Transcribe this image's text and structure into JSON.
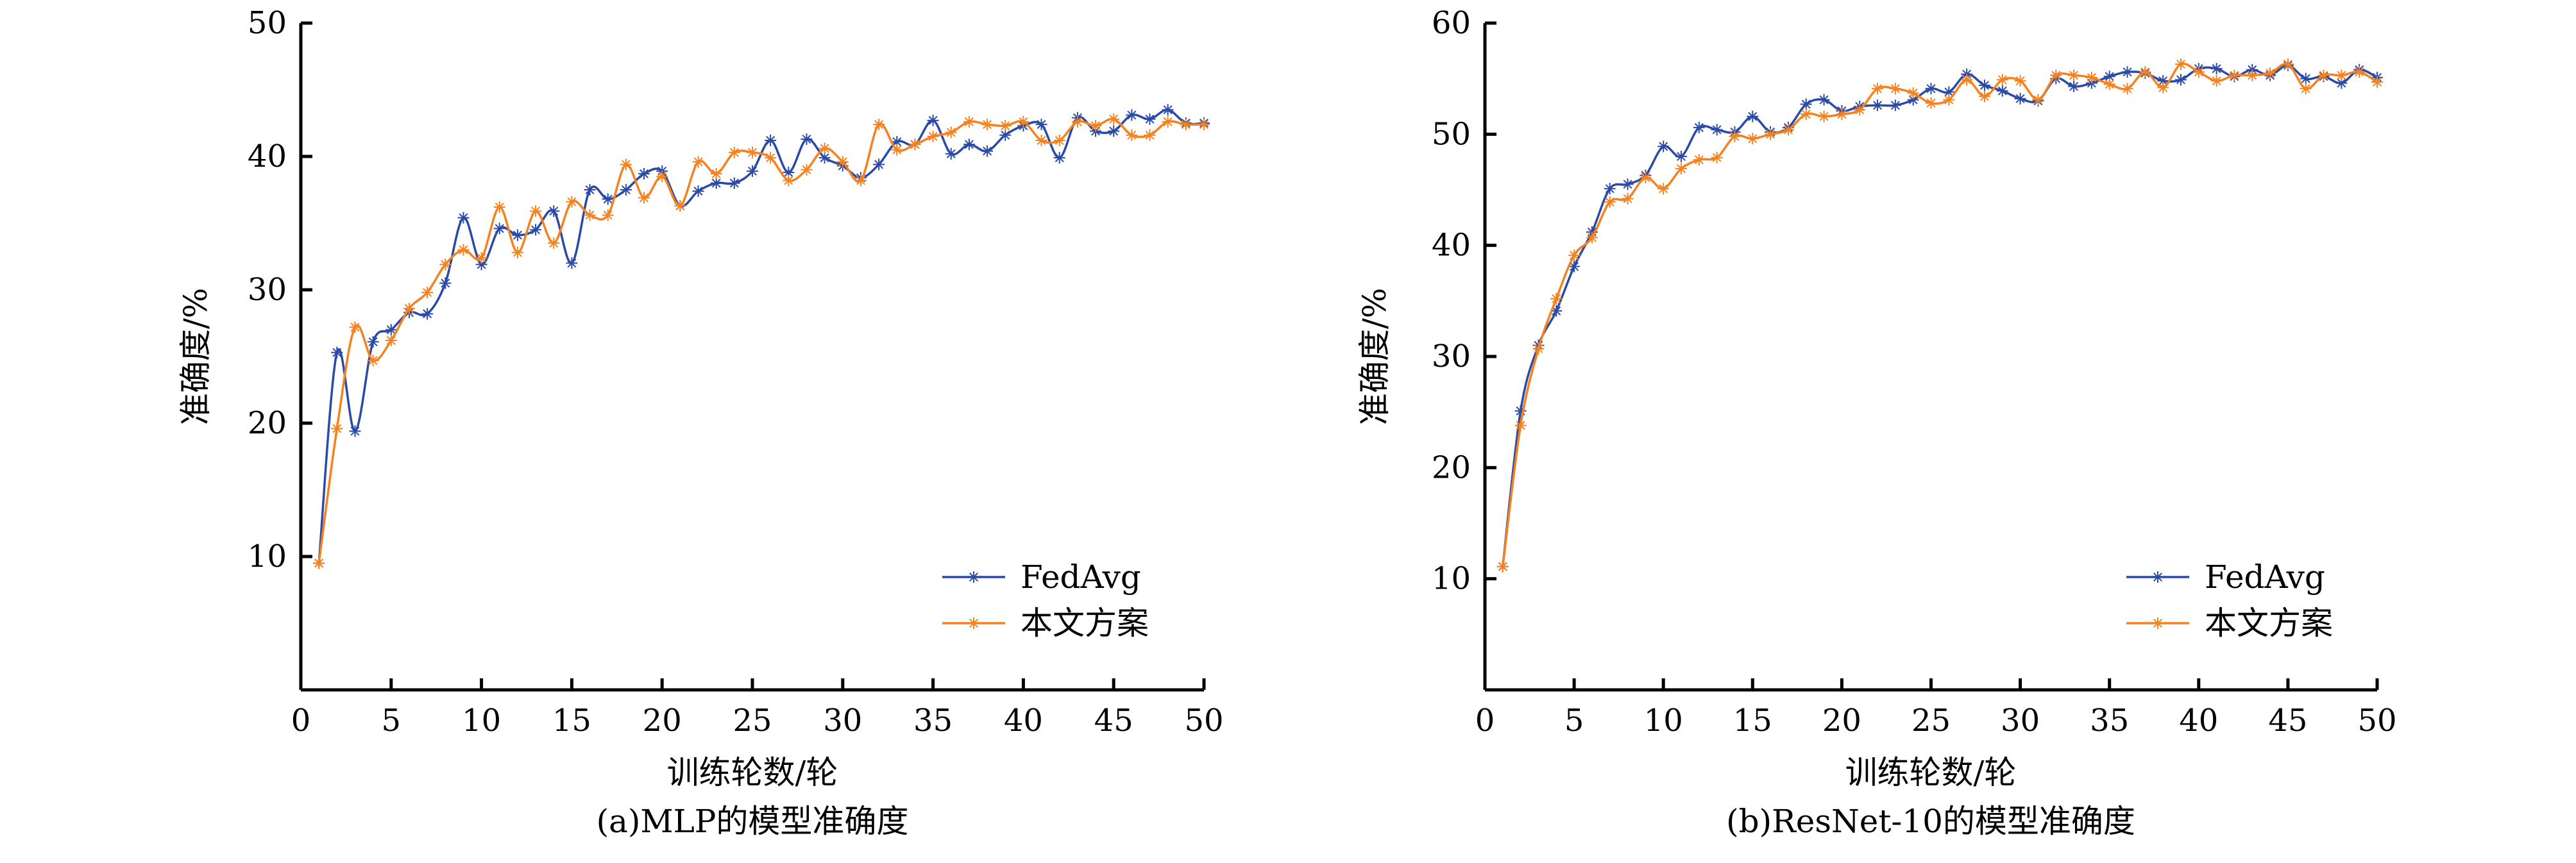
{
  "chart_data": [
    {
      "type": "line",
      "title": "(a)MLP的模型准确度",
      "xlabel": "训练轮数/轮",
      "ylabel": "准确度/%",
      "xlim": [
        0,
        50
      ],
      "ylim": [
        0,
        50
      ],
      "xticks": [
        0,
        5,
        10,
        15,
        20,
        25,
        30,
        35,
        40,
        45,
        50
      ],
      "yticks": [
        10,
        20,
        30,
        40,
        50
      ],
      "legend_position": "bottom-right",
      "x": [
        1,
        2,
        3,
        4,
        5,
        6,
        7,
        8,
        9,
        10,
        11,
        12,
        13,
        14,
        15,
        16,
        17,
        18,
        19,
        20,
        21,
        22,
        23,
        24,
        25,
        26,
        27,
        28,
        29,
        30,
        31,
        32,
        33,
        34,
        35,
        36,
        37,
        38,
        39,
        40,
        41,
        42,
        43,
        44,
        45,
        46,
        47,
        48,
        49,
        50
      ],
      "series": [
        {
          "name": "FedAvg",
          "color": "#2a4aa8",
          "values": [
            9.5,
            25.3,
            19.4,
            26.1,
            27.0,
            28.3,
            28.2,
            30.5,
            35.4,
            31.9,
            34.6,
            34.1,
            34.5,
            35.9,
            32.0,
            37.5,
            36.8,
            37.5,
            38.7,
            38.9,
            36.3,
            37.4,
            38.0,
            38.0,
            38.9,
            41.2,
            38.8,
            41.3,
            39.9,
            39.3,
            38.4,
            39.4,
            41.1,
            40.9,
            42.7,
            40.2,
            40.9,
            40.4,
            41.6,
            42.3,
            42.4,
            39.9,
            42.9,
            41.9,
            41.9,
            43.1,
            42.8,
            43.5,
            42.5,
            42.5
          ]
        },
        {
          "name": "本文方案",
          "color": "#f5821f",
          "values": [
            9.5,
            19.6,
            27.2,
            24.7,
            26.2,
            28.6,
            29.8,
            31.9,
            33.0,
            32.4,
            36.2,
            32.8,
            35.9,
            33.5,
            36.6,
            35.6,
            35.6,
            39.4,
            36.9,
            38.5,
            36.3,
            39.6,
            38.7,
            40.3,
            40.3,
            39.9,
            38.2,
            39.0,
            40.6,
            39.6,
            38.2,
            42.4,
            40.5,
            40.9,
            41.5,
            41.8,
            42.6,
            42.4,
            42.3,
            42.6,
            41.2,
            41.2,
            42.6,
            42.3,
            42.8,
            41.6,
            41.6,
            42.6,
            42.4,
            42.4
          ]
        }
      ]
    },
    {
      "type": "line",
      "title": "(b)ResNet-10的模型准确度",
      "xlabel": "训练轮数/轮",
      "ylabel": "准确度/%",
      "xlim": [
        0,
        50
      ],
      "ylim": [
        0,
        60
      ],
      "xticks": [
        0,
        5,
        10,
        15,
        20,
        25,
        30,
        35,
        40,
        45,
        50
      ],
      "yticks": [
        10,
        20,
        30,
        40,
        50,
        60
      ],
      "legend_position": "bottom-right",
      "x": [
        1,
        2,
        3,
        4,
        5,
        6,
        7,
        8,
        9,
        10,
        11,
        12,
        13,
        14,
        15,
        16,
        17,
        18,
        19,
        20,
        21,
        22,
        23,
        24,
        25,
        26,
        27,
        28,
        29,
        30,
        31,
        32,
        33,
        34,
        35,
        36,
        37,
        38,
        39,
        40,
        41,
        42,
        43,
        44,
        45,
        46,
        47,
        48,
        49,
        50
      ],
      "series": [
        {
          "name": "FedAvg",
          "color": "#2a4aa8",
          "values": [
            11.1,
            25.1,
            31.0,
            34.1,
            38.1,
            41.2,
            45.1,
            45.5,
            46.3,
            48.9,
            48.0,
            50.6,
            50.4,
            50.2,
            51.6,
            50.2,
            50.6,
            52.7,
            53.1,
            52.1,
            52.5,
            52.6,
            52.6,
            53.1,
            54.1,
            53.8,
            55.4,
            54.4,
            53.9,
            53.2,
            53.0,
            55.0,
            54.3,
            54.6,
            55.2,
            55.6,
            55.5,
            54.8,
            54.9,
            55.9,
            55.9,
            55.2,
            55.8,
            55.3,
            56.2,
            55.0,
            55.2,
            54.6,
            55.8,
            55.1
          ]
        },
        {
          "name": "本文方案",
          "color": "#f5821f",
          "values": [
            11.1,
            23.8,
            30.7,
            35.2,
            39.1,
            40.7,
            43.9,
            44.2,
            46.1,
            45.1,
            46.9,
            47.7,
            47.9,
            49.8,
            49.6,
            50.0,
            50.4,
            51.8,
            51.6,
            51.8,
            52.2,
            54.1,
            54.1,
            53.7,
            52.8,
            53.1,
            54.9,
            53.4,
            54.9,
            54.8,
            53.1,
            55.3,
            55.3,
            55.1,
            54.5,
            54.1,
            55.6,
            54.2,
            56.3,
            55.6,
            54.8,
            55.3,
            55.3,
            55.5,
            56.3,
            54.1,
            55.3,
            55.3,
            55.6,
            54.7
          ]
        }
      ]
    }
  ]
}
